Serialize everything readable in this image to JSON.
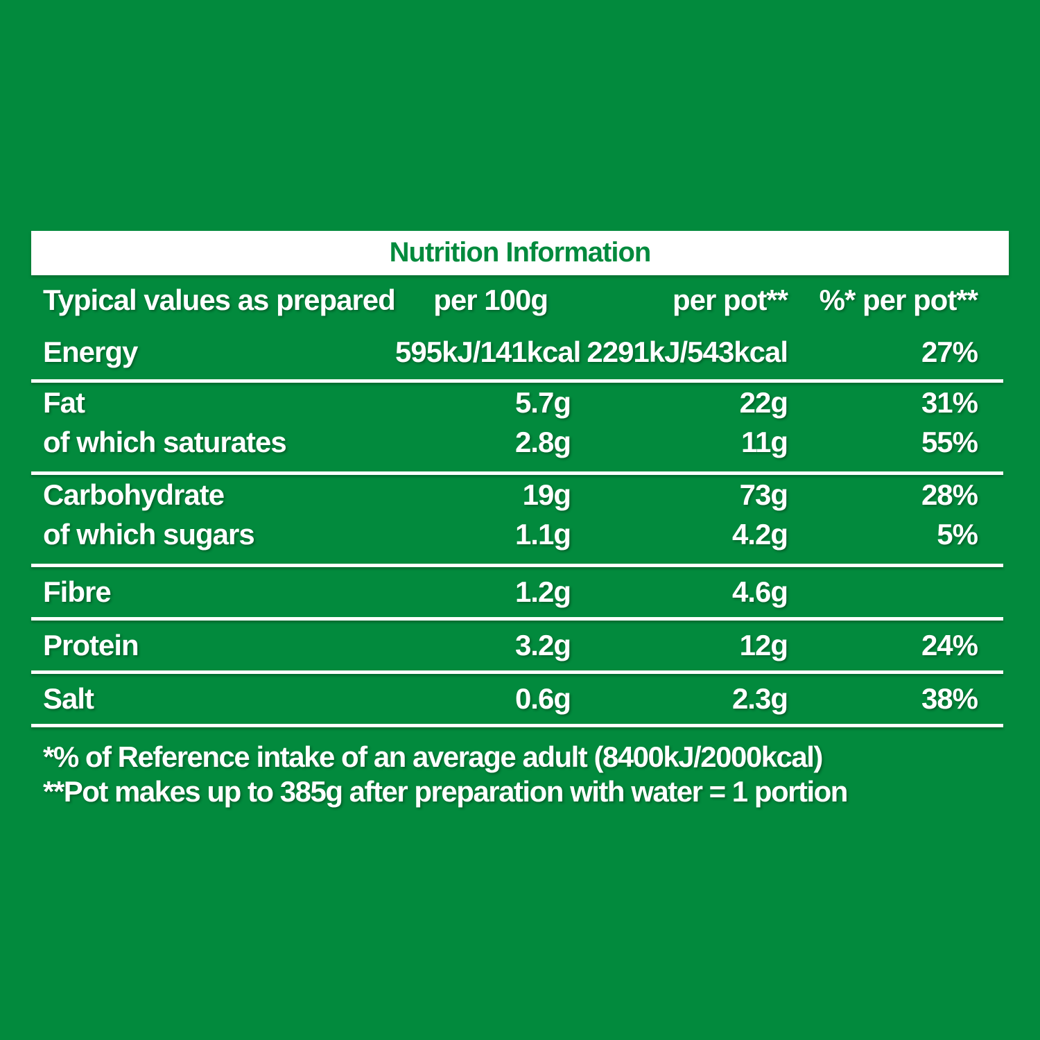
{
  "page": {
    "background_color": "#028A3D",
    "text_color": "#FFFFFF"
  },
  "banner": {
    "title": "Nutrition Information",
    "title_color": "#028A3D",
    "background_color": "#FFFFFF"
  },
  "table": {
    "columns": [
      "Typical values as prepared",
      "per 100g",
      "per pot**",
      "%* per pot**"
    ],
    "rows": [
      {
        "label": "Energy",
        "per_100g": "595kJ/141kcal",
        "per_pot": "2291kJ/543kcal",
        "pct_per_pot": "27%",
        "style": "energy",
        "divider_after": true
      },
      {
        "label": "Fat",
        "per_100g": "5.7g",
        "per_pot": "22g",
        "pct_per_pot": "31%",
        "style": "compact",
        "divider_after": false
      },
      {
        "label": "of which saturates",
        "per_100g": "2.8g",
        "per_pot": "11g",
        "pct_per_pot": "55%",
        "style": "compact-end",
        "divider_after": true
      },
      {
        "label": "Carbohydrate",
        "per_100g": "19g",
        "per_pot": "73g",
        "pct_per_pot": "28%",
        "style": "compact",
        "divider_after": false
      },
      {
        "label": "of which sugars",
        "per_100g": "1.1g",
        "per_pot": "4.2g",
        "pct_per_pot": "5%",
        "style": "compact-end",
        "divider_after": true
      },
      {
        "label": "Fibre",
        "per_100g": "1.2g",
        "per_pot": "4.6g",
        "pct_per_pot": "",
        "style": "single",
        "divider_after": true
      },
      {
        "label": "Protein",
        "per_100g": "3.2g",
        "per_pot": "12g",
        "pct_per_pot": "24%",
        "style": "single",
        "divider_after": true
      },
      {
        "label": "Salt",
        "per_100g": "0.6g",
        "per_pot": "2.3g",
        "pct_per_pot": "38%",
        "style": "single",
        "divider_after": true
      }
    ]
  },
  "footnotes": [
    "*% of Reference intake of an average adult (8400kJ/2000kcal)",
    "**Pot makes up to 385g after preparation with water = 1 portion"
  ]
}
